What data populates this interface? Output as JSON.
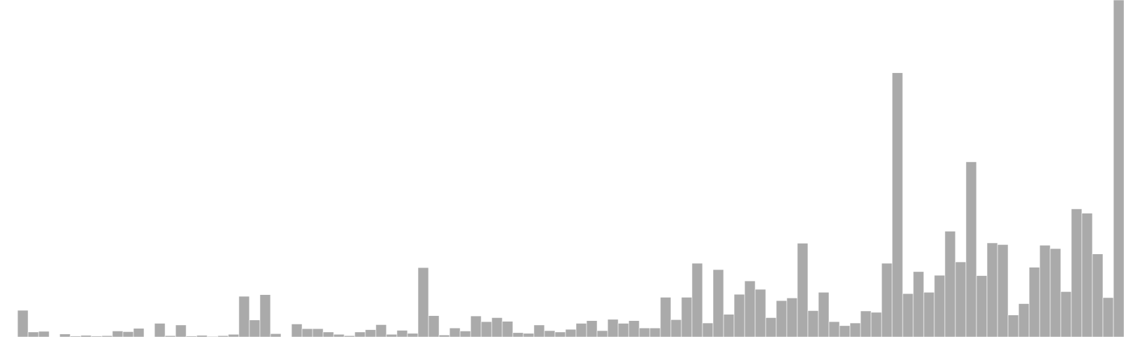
{
  "chart_data": {
    "type": "bar",
    "title": "",
    "xlabel": "",
    "ylabel": "",
    "grid": false,
    "legend": "none",
    "ylim": [
      0,
      100
    ],
    "bar_color": "#aaaaaa",
    "bar_edge_color": "#ffffff",
    "values": [
      0,
      8,
      1.5,
      1.7,
      0,
      0.9,
      0.3,
      0.5,
      0.3,
      0.4,
      1.8,
      1.6,
      2.6,
      0,
      4.1,
      0.4,
      3.6,
      0.3,
      0.5,
      0.2,
      0.4,
      0.8,
      12.2,
      5.1,
      12.7,
      1.0,
      0,
      3.9,
      2.5,
      2.5,
      1.5,
      0.8,
      0.4,
      1.5,
      2.2,
      3.7,
      0.8,
      2.0,
      1.1,
      20.8,
      6.4,
      0.6,
      2.7,
      1.8,
      6.3,
      4.6,
      5.8,
      4.7,
      1.3,
      1.1,
      3.6,
      1.9,
      1.5,
      2.3,
      4.1,
      4.9,
      1.9,
      5.3,
      4.1,
      4.9,
      2.7,
      2.7,
      11.9,
      5.2,
      11.9,
      22.1,
      4.2,
      20.2,
      6.8,
      12.8,
      16.8,
      14.3,
      5.8,
      10.9,
      11.7,
      28.1,
      7.9,
      13.4,
      4.6,
      3.4,
      4.2,
      7.8,
      7.4,
      22.1,
      79.2,
      13.0,
      19.6,
      13.4,
      18.5,
      31.7,
      22.5,
      52.5,
      18.4,
      28.2,
      27.7,
      6.6,
      10.0,
      20.9,
      27.5,
      26.5,
      13.6,
      38.4,
      37.1,
      24.9,
      11.8,
      101.0
    ]
  }
}
